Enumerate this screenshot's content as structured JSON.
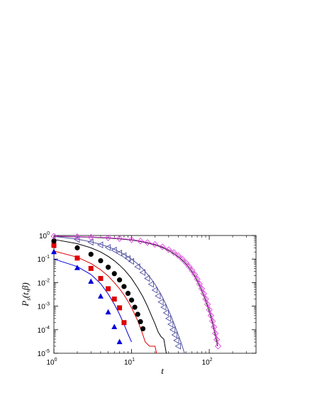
{
  "chart_data": {
    "type": "line",
    "xlabel": "t",
    "ylabel": "P_s(t,β)",
    "ylabel_main": "P",
    "ylabel_sub": "s",
    "ylabel_rest": "(t,β)",
    "xscale": "log",
    "yscale": "log",
    "xlim": [
      1,
      400
    ],
    "ylim": [
      1e-05,
      1
    ],
    "x_ticks": [
      {
        "value": 1,
        "base": "10",
        "exp": "0"
      },
      {
        "value": 10,
        "base": "10",
        "exp": "1"
      },
      {
        "value": 100,
        "base": "10",
        "exp": "2"
      }
    ],
    "y_ticks": [
      {
        "value": 1,
        "base": "10",
        "exp": "0"
      },
      {
        "value": 0.1,
        "base": "10",
        "exp": "-1"
      },
      {
        "value": 0.01,
        "base": "10",
        "exp": "-2"
      },
      {
        "value": 0.001,
        "base": "10",
        "exp": "-3"
      },
      {
        "value": 0.0001,
        "base": "10",
        "exp": "-4"
      },
      {
        "value": 1e-05,
        "base": "10",
        "exp": "-5"
      }
    ],
    "grid": false,
    "legend": "none",
    "markers": [
      {
        "marker": "triangle",
        "color": "#0000dd",
        "points": [
          [
            1,
            0.2
          ],
          [
            2,
            0.042
          ],
          [
            3,
            0.011
          ],
          [
            4,
            0.0026
          ],
          [
            5,
            0.00055
          ],
          [
            6,
            0.00013
          ],
          [
            7,
            3e-05
          ]
        ]
      },
      {
        "marker": "square",
        "color": "#dd0000",
        "points": [
          [
            1,
            0.38
          ],
          [
            2,
            0.11
          ],
          [
            3,
            0.04
          ],
          [
            4,
            0.015
          ],
          [
            5,
            0.0055
          ],
          [
            6,
            0.002
          ],
          [
            7,
            0.00085
          ],
          [
            8,
            0.0002
          ]
        ]
      },
      {
        "marker": "circle",
        "color": "#000000",
        "points": [
          [
            1,
            0.58
          ],
          [
            2,
            0.3
          ],
          [
            3,
            0.16
          ],
          [
            4,
            0.085
          ],
          [
            5,
            0.045
          ],
          [
            6,
            0.024
          ],
          [
            7,
            0.013
          ],
          [
            8,
            0.0068
          ],
          [
            9,
            0.0035
          ],
          [
            10,
            0.0018
          ],
          [
            11,
            0.0009
          ],
          [
            12,
            0.00045
          ],
          [
            13,
            0.00022
          ],
          [
            14,
            0.00011
          ]
        ]
      },
      {
        "marker": "triangle-left-open",
        "color": "#5050a0",
        "points": [
          [
            2,
            0.68
          ],
          [
            3,
            0.52
          ],
          [
            4,
            0.4
          ],
          [
            5,
            0.31
          ],
          [
            6,
            0.24
          ],
          [
            7,
            0.18
          ],
          [
            8,
            0.14
          ],
          [
            9,
            0.105
          ],
          [
            10,
            0.08
          ],
          [
            12,
            0.047
          ],
          [
            14,
            0.027
          ],
          [
            16,
            0.015
          ],
          [
            18,
            0.0085
          ],
          [
            20,
            0.0048
          ],
          [
            22,
            0.0027
          ],
          [
            24,
            0.0015
          ],
          [
            26,
            0.0009
          ],
          [
            28,
            0.00052
          ],
          [
            30,
            0.0003
          ],
          [
            32,
            0.00017
          ],
          [
            34,
            0.0001
          ],
          [
            36,
            6e-05
          ],
          [
            38,
            3.5e-05
          ],
          [
            40,
            2e-05
          ]
        ]
      },
      {
        "marker": "diamond-open",
        "color": "#dd44dd",
        "points": [
          [
            1,
            0.93
          ],
          [
            2,
            0.89
          ],
          [
            3,
            0.85
          ],
          [
            5,
            0.8
          ],
          [
            7,
            0.74
          ],
          [
            10,
            0.66
          ],
          [
            13,
            0.58
          ],
          [
            16,
            0.5
          ],
          [
            20,
            0.42
          ],
          [
            25,
            0.33
          ],
          [
            30,
            0.25
          ],
          [
            35,
            0.19
          ],
          [
            40,
            0.14
          ],
          [
            45,
            0.1
          ],
          [
            50,
            0.07
          ],
          [
            55,
            0.048
          ],
          [
            60,
            0.033
          ],
          [
            65,
            0.022
          ],
          [
            70,
            0.014
          ],
          [
            75,
            0.0088
          ],
          [
            80,
            0.0055
          ],
          [
            85,
            0.0034
          ],
          [
            90,
            0.002
          ],
          [
            95,
            0.0012
          ],
          [
            100,
            0.0007
          ],
          [
            105,
            0.0004
          ],
          [
            110,
            0.00023
          ],
          [
            115,
            0.00013
          ],
          [
            120,
            7e-05
          ],
          [
            125,
            3.8e-05
          ],
          [
            130,
            2e-05
          ]
        ]
      }
    ],
    "lines": [
      {
        "color": "#0000dd",
        "points": [
          [
            1,
            0.1
          ],
          [
            2,
            0.048
          ],
          [
            3,
            0.022
          ],
          [
            4,
            0.009
          ],
          [
            5,
            0.0033
          ],
          [
            6,
            0.0012
          ],
          [
            7,
            0.00045
          ],
          [
            8,
            0.00017
          ],
          [
            9,
            6.5e-05
          ],
          [
            10,
            3e-05
          ]
        ]
      },
      {
        "color": "#dd0000",
        "points": [
          [
            1,
            0.22
          ],
          [
            2,
            0.12
          ],
          [
            3,
            0.065
          ],
          [
            4,
            0.035
          ],
          [
            5,
            0.019
          ],
          [
            6,
            0.01
          ],
          [
            7,
            0.0055
          ],
          [
            8,
            0.003
          ],
          [
            9,
            0.0016
          ],
          [
            10,
            0.00085
          ],
          [
            11,
            0.00045
          ],
          [
            12,
            0.00024
          ],
          [
            13,
            0.00012
          ],
          [
            14,
            6e-05
          ],
          [
            15,
            3e-05
          ],
          [
            17,
            2e-05
          ],
          [
            20,
            2e-05
          ],
          [
            21,
            1e-05
          ]
        ]
      },
      {
        "color": "#000000",
        "points": [
          [
            1,
            0.68
          ],
          [
            2,
            0.45
          ],
          [
            3,
            0.3
          ],
          [
            4,
            0.2
          ],
          [
            5,
            0.13
          ],
          [
            6,
            0.085
          ],
          [
            7,
            0.055
          ],
          [
            8,
            0.036
          ],
          [
            9,
            0.023
          ],
          [
            10,
            0.015
          ],
          [
            12,
            0.006
          ],
          [
            14,
            0.0025
          ],
          [
            16,
            0.001
          ],
          [
            18,
            0.0004
          ],
          [
            20,
            0.00018
          ],
          [
            22,
            8e-05
          ],
          [
            24,
            5e-05
          ],
          [
            26,
            4e-05
          ],
          [
            28,
            1e-05
          ]
        ]
      },
      {
        "color": "#5050a0",
        "points": [
          [
            1,
            0.92
          ],
          [
            2,
            0.7
          ],
          [
            3,
            0.54
          ],
          [
            4,
            0.42
          ],
          [
            5,
            0.33
          ],
          [
            6,
            0.26
          ],
          [
            7,
            0.2
          ],
          [
            8,
            0.16
          ],
          [
            10,
            0.1
          ],
          [
            12,
            0.062
          ],
          [
            14,
            0.038
          ],
          [
            16,
            0.023
          ],
          [
            18,
            0.014
          ],
          [
            20,
            0.0085
          ],
          [
            24,
            0.0031
          ],
          [
            28,
            0.0011
          ],
          [
            32,
            0.0004
          ],
          [
            36,
            0.00015
          ],
          [
            40,
            6e-05
          ],
          [
            44,
            2.5e-05
          ],
          [
            48,
            1e-05
          ]
        ]
      },
      {
        "color": "#000000",
        "points": [
          [
            1,
            0.92
          ],
          [
            2,
            0.88
          ],
          [
            3,
            0.84
          ],
          [
            5,
            0.78
          ],
          [
            7,
            0.72
          ],
          [
            10,
            0.64
          ],
          [
            13,
            0.56
          ],
          [
            16,
            0.48
          ],
          [
            20,
            0.4
          ],
          [
            25,
            0.31
          ],
          [
            30,
            0.23
          ],
          [
            35,
            0.17
          ],
          [
            40,
            0.125
          ],
          [
            45,
            0.09
          ],
          [
            50,
            0.063
          ],
          [
            55,
            0.043
          ],
          [
            60,
            0.029
          ],
          [
            65,
            0.019
          ],
          [
            70,
            0.012
          ],
          [
            75,
            0.0075
          ],
          [
            80,
            0.0046
          ],
          [
            85,
            0.0028
          ],
          [
            90,
            0.0017
          ],
          [
            95,
            0.001
          ],
          [
            100,
            0.0006
          ],
          [
            105,
            0.00034
          ],
          [
            110,
            0.00019
          ],
          [
            115,
            0.0001
          ],
          [
            120,
            5.5e-05
          ],
          [
            125,
            3e-05
          ],
          [
            128,
            2e-05
          ]
        ]
      },
      {
        "color": "#dd44dd",
        "points": [
          [
            1,
            0.94
          ],
          [
            2,
            0.9
          ],
          [
            3,
            0.86
          ],
          [
            5,
            0.81
          ],
          [
            7,
            0.75
          ],
          [
            10,
            0.67
          ],
          [
            13,
            0.59
          ],
          [
            16,
            0.51
          ],
          [
            20,
            0.43
          ],
          [
            25,
            0.34
          ],
          [
            30,
            0.26
          ],
          [
            35,
            0.2
          ],
          [
            40,
            0.15
          ],
          [
            45,
            0.11
          ],
          [
            50,
            0.077
          ],
          [
            55,
            0.054
          ],
          [
            60,
            0.037
          ],
          [
            65,
            0.025
          ],
          [
            70,
            0.016
          ],
          [
            75,
            0.01
          ],
          [
            80,
            0.0064
          ],
          [
            85,
            0.004
          ],
          [
            90,
            0.0024
          ],
          [
            95,
            0.0014
          ],
          [
            100,
            0.00085
          ],
          [
            105,
            0.0005
          ],
          [
            110,
            0.00029
          ],
          [
            115,
            0.00016
          ],
          [
            120,
            9e-05
          ],
          [
            125,
            5e-05
          ],
          [
            130,
            2.5e-05
          ]
        ]
      }
    ]
  }
}
